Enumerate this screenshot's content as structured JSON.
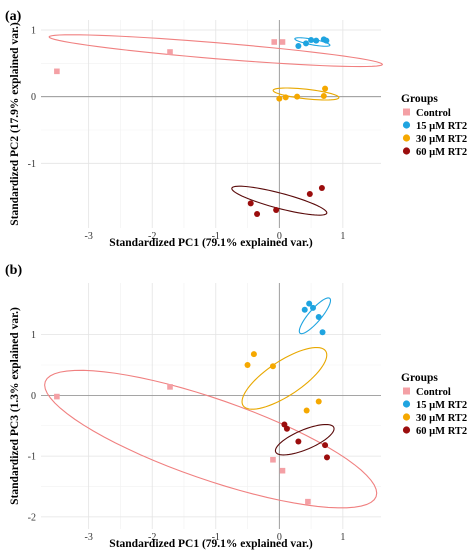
{
  "chart_data": [
    {
      "type": "scatter",
      "panel_label": "(a)",
      "xlabel": "Standardized PC1 (79.1% explained var.)",
      "ylabel": "Standardized PC2 (17.9% explained var.)",
      "xlim": [
        -3.75,
        1.6
      ],
      "ylim": [
        -1.97,
        1.15
      ],
      "xticks": [
        -3,
        -2,
        -1,
        0,
        1
      ],
      "yticks": [
        -1,
        0,
        1
      ],
      "grid": true,
      "legend_placement": "right",
      "legend_title": "Groups",
      "series": [
        {
          "name": "Control",
          "marker": "square",
          "color": "#f4a0a5",
          "points": [
            [
              -3.5,
              0.38
            ],
            [
              -1.72,
              0.67
            ],
            [
              -0.08,
              0.82
            ],
            [
              0.05,
              0.82
            ]
          ],
          "ellipse": {
            "cx": -1.0,
            "cy": 0.69,
            "rx": 2.63,
            "ry": 0.12,
            "angle_deg": -4.5,
            "color": "#f08080"
          }
        },
        {
          "name": "15 µM RT2",
          "marker": "circle",
          "color": "#1fa4e0",
          "points": [
            [
              0.3,
              0.76
            ],
            [
              0.42,
              0.8
            ],
            [
              0.5,
              0.85
            ],
            [
              0.58,
              0.84
            ],
            [
              0.7,
              0.86
            ],
            [
              0.74,
              0.84
            ]
          ],
          "ellipse": {
            "cx": 0.52,
            "cy": 0.82,
            "rx": 0.28,
            "ry": 0.042,
            "angle_deg": -10,
            "color": "#1fa4e0"
          }
        },
        {
          "name": "30 µM RT2",
          "marker": "circle",
          "color": "#f5a800",
          "points": [
            [
              0.0,
              -0.03
            ],
            [
              0.1,
              -0.01
            ],
            [
              0.28,
              0.0
            ],
            [
              0.7,
              0.01
            ],
            [
              0.72,
              0.12
            ]
          ],
          "ellipse": {
            "cx": 0.42,
            "cy": 0.04,
            "rx": 0.52,
            "ry": 0.072,
            "angle_deg": -6,
            "color": "#e8a800"
          }
        },
        {
          "name": "60 µM RT2",
          "marker": "circle",
          "color": "#9b0d0d",
          "points": [
            [
              -0.45,
              -1.6
            ],
            [
              -0.35,
              -1.76
            ],
            [
              -0.05,
              -1.7
            ],
            [
              0.48,
              -1.46
            ],
            [
              0.67,
              -1.37
            ]
          ],
          "ellipse": {
            "cx": 0.0,
            "cy": -1.56,
            "rx": 0.77,
            "ry": 0.115,
            "angle_deg": -14,
            "color": "#5a0a0a"
          }
        }
      ]
    },
    {
      "type": "scatter",
      "panel_label": "(b)",
      "xlabel": "Standardized PC1 (79.1% explained var.)",
      "ylabel": "Standardized PC3 (1.3% explained var.)",
      "xlim": [
        -3.75,
        1.6
      ],
      "ylim": [
        -2.2,
        1.85
      ],
      "xticks": [
        -3,
        -2,
        -1,
        0,
        1
      ],
      "yticks": [
        -2,
        -1,
        0,
        1
      ],
      "grid": true,
      "legend_placement": "right",
      "legend_title": "Groups",
      "series": [
        {
          "name": "Control",
          "marker": "square",
          "color": "#f4a0a5",
          "points": [
            [
              -3.5,
              -0.02
            ],
            [
              -1.72,
              0.14
            ],
            [
              -0.1,
              -1.06
            ],
            [
              0.05,
              -1.24
            ],
            [
              0.45,
              -1.75
            ]
          ],
          "ellipse": {
            "cx": -1.08,
            "cy": -0.72,
            "rx": 2.77,
            "ry": 0.66,
            "angle_deg": -20,
            "color": "#f08080"
          }
        },
        {
          "name": "15 µM RT2",
          "marker": "circle",
          "color": "#1fa4e0",
          "points": [
            [
              0.4,
              1.41
            ],
            [
              0.47,
              1.51
            ],
            [
              0.53,
              1.44
            ],
            [
              0.62,
              1.29
            ],
            [
              0.68,
              1.04
            ]
          ],
          "ellipse": {
            "cx": 0.56,
            "cy": 1.31,
            "rx": 0.37,
            "ry": 0.1,
            "angle_deg": 51,
            "color": "#1fa4e0"
          }
        },
        {
          "name": "30 µM RT2",
          "marker": "circle",
          "color": "#f5a800",
          "points": [
            [
              -0.5,
              0.5
            ],
            [
              -0.4,
              0.68
            ],
            [
              -0.1,
              0.48
            ],
            [
              0.43,
              -0.25
            ],
            [
              0.62,
              -0.1
            ]
          ],
          "ellipse": {
            "cx": 0.08,
            "cy": 0.28,
            "rx": 0.79,
            "ry": 0.28,
            "angle_deg": 35,
            "color": "#e8a800"
          }
        },
        {
          "name": "60 µM RT2",
          "marker": "circle",
          "color": "#9b0d0d",
          "points": [
            [
              0.08,
              -0.48
            ],
            [
              0.12,
              -0.55
            ],
            [
              0.3,
              -0.76
            ],
            [
              0.72,
              -0.82
            ],
            [
              0.75,
              -1.02
            ]
          ],
          "ellipse": {
            "cx": 0.4,
            "cy": -0.73,
            "rx": 0.5,
            "ry": 0.16,
            "angle_deg": 24,
            "color": "#5a0a0a"
          }
        }
      ]
    }
  ]
}
